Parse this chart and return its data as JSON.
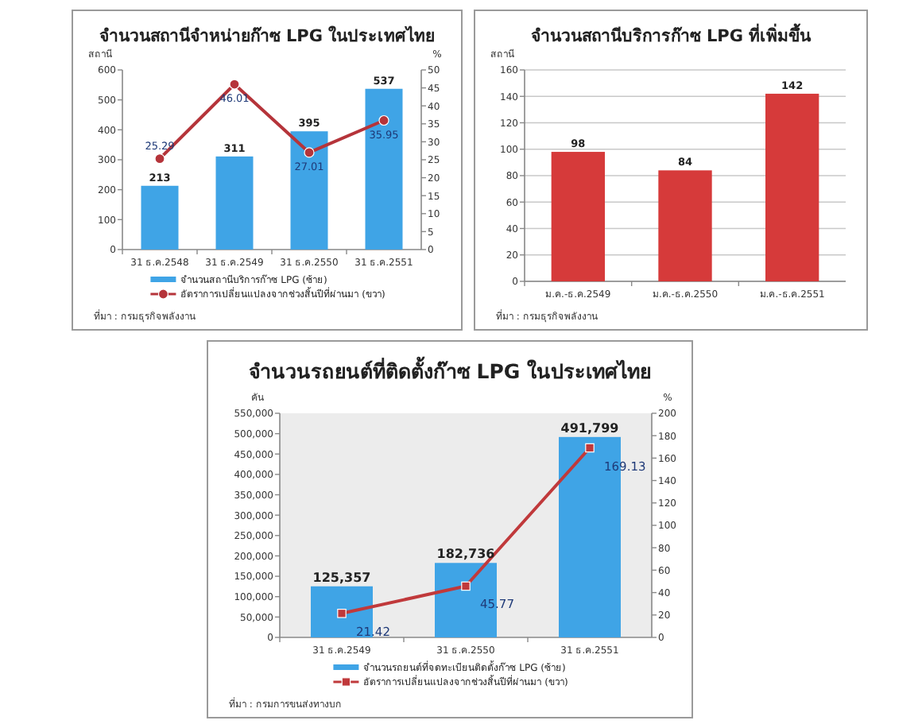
{
  "chart_data": [
    {
      "type": "bar",
      "title": "จำนวนสถานีจำหน่ายก๊าซ LPG ในประเทศไทย",
      "ylabel": "สถานี",
      "y2label": "%",
      "categories": [
        "31 ธ.ค.2548",
        "31 ธ.ค.2549",
        "31 ธ.ค.2550",
        "31 ธ.ค.2551"
      ],
      "series": [
        {
          "name": "จำนวนสถานีบริการก๊าซ LPG (ซ้าย)",
          "color": "#3fa4e6",
          "values": [
            213,
            311,
            395,
            537
          ]
        },
        {
          "name": "อัตราการเปลี่ยนแปลงจากช่วงสิ้นปีที่ผ่านมา (ขวา)",
          "type": "line",
          "axis": "y2",
          "color": "#b5343a",
          "values": [
            25.29,
            46.01,
            27.01,
            35.95
          ]
        }
      ],
      "ylim": [
        0,
        600
      ],
      "yticks": [
        0,
        100,
        200,
        300,
        400,
        500,
        600
      ],
      "y2lim": [
        0,
        50
      ],
      "y2ticks": [
        0,
        5,
        10,
        15,
        20,
        25,
        30,
        35,
        40,
        45,
        50
      ],
      "data_labels": true,
      "marker": "circle",
      "legend": "bottom",
      "annotations": [
        "ที่มา : กรมธุรกิจพลังงาน"
      ]
    },
    {
      "type": "bar",
      "title": "จำนวนสถานีบริการก๊าซ LPG ที่เพิ่มขึ้น",
      "ylabel": "สถานี",
      "categories": [
        "ม.ค.-ธ.ค.2549",
        "ม.ค.-ธ.ค.2550",
        "ม.ค.-ธ.ค.2551"
      ],
      "values": [
        98,
        84,
        142
      ],
      "color": "#d63a3a",
      "ylim": [
        0,
        160
      ],
      "yticks": [
        0,
        20,
        40,
        60,
        80,
        100,
        120,
        140,
        160
      ],
      "grid": "y",
      "data_labels": true,
      "annotations": [
        "ที่มา : กรมธุรกิจพลังงาน"
      ]
    },
    {
      "type": "bar",
      "title": "จำนวนรถยนต์ที่ติดตั้งก๊าซ LPG ในประเทศไทย",
      "ylabel": "คัน",
      "y2label": "%",
      "categories": [
        "31 ธ.ค.2549",
        "31 ธ.ค.2550",
        "31 ธ.ค.2551"
      ],
      "series": [
        {
          "name": "จำนวนรถยนต์ที่จดทะเบียนติดตั้งก๊าซ LPG (ซ้าย)",
          "color": "#3fa4e6",
          "values": [
            125357,
            182736,
            491799
          ],
          "value_labels": [
            "125,357",
            "182,736",
            "491,799"
          ]
        },
        {
          "name": "อัตราการเปลี่ยนแปลงจากช่วงสิ้นปีที่ผ่านมา (ขวา)",
          "type": "line",
          "axis": "y2",
          "color": "#c0393b",
          "values": [
            21.42,
            45.77,
            169.13
          ]
        }
      ],
      "ylim": [
        0,
        550000
      ],
      "yticks": [
        {
          "value": 0,
          "label": "0"
        },
        {
          "value": 50000,
          "label": "50,000"
        },
        {
          "value": 100000,
          "label": "100,000"
        },
        {
          "value": 150000,
          "label": "150,000"
        },
        {
          "value": 200000,
          "label": "200,000"
        },
        {
          "value": 250000,
          "label": "250,000"
        },
        {
          "value": 300000,
          "label": "300,000"
        },
        {
          "value": 350000,
          "label": "350,000"
        },
        {
          "value": 400000,
          "label": "400,000"
        },
        {
          "value": 450000,
          "label": "450,000"
        },
        {
          "value": 500000,
          "label": "500,000"
        },
        {
          "value": 550000,
          "label": "550,000"
        }
      ],
      "y2lim": [
        0,
        200
      ],
      "y2ticks": [
        0,
        20,
        40,
        60,
        80,
        100,
        120,
        140,
        160,
        180,
        200
      ],
      "data_labels": true,
      "marker": "square",
      "legend": "bottom",
      "annotations": [
        "ที่มา : กรมการขนส่งทางบก"
      ]
    }
  ]
}
